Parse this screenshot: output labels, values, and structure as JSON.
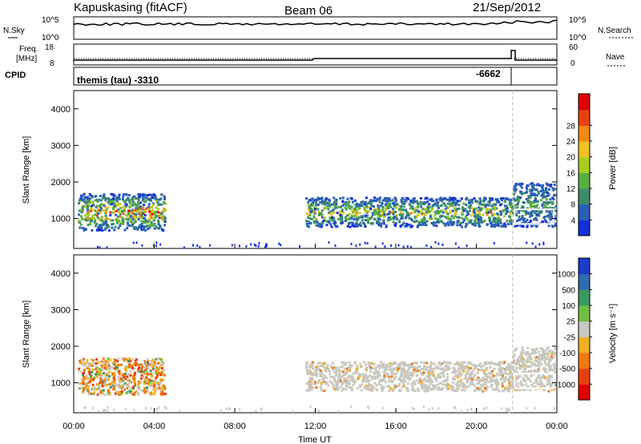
{
  "header": {
    "station": "Kapuskasing (fitACF)",
    "beam": "Beam 06",
    "date": "21/Sep/2012"
  },
  "top_panel": {
    "left_label": "N.Sky",
    "right_label": "N.Search",
    "y_ticks_left": [
      "10^5",
      "10^0"
    ],
    "y_ticks_right": [
      "10^5",
      "10^0"
    ]
  },
  "freq_panel": {
    "left_label_1": "Freq.",
    "left_label_2": "[MHz]",
    "right_label": "Nave",
    "y_ticks_left": [
      "18",
      "8"
    ],
    "y_ticks_right": [
      "60",
      "0"
    ]
  },
  "cpid_panel": {
    "label": "CPID",
    "mode_text": "themis (tau) -3310",
    "alt_mode_text": "-6662"
  },
  "chart_data": [
    {
      "type": "heatmap",
      "title": "",
      "ylabel": "Slant Range [km]",
      "xlabel": "",
      "xlim_hours": [
        0,
        24
      ],
      "ylim_km": [
        180,
        4500
      ],
      "y_ticks": [
        "1000",
        "2000",
        "3000",
        "4000"
      ],
      "colorbar": {
        "label": "Power [dB]",
        "ticks": [
          "4",
          "8",
          "12",
          "16",
          "20",
          "24",
          "28"
        ],
        "colors": [
          "#1530d8",
          "#2a5fb8",
          "#3c8c6a",
          "#55b040",
          "#a8cc20",
          "#f0c020",
          "#f08a10",
          "#e84010",
          "#e00000"
        ]
      },
      "echo_regions": [
        {
          "t_start": 0.2,
          "t_end": 4.5,
          "range_start_km": 700,
          "range_end_km": 1700,
          "peak_db": 28
        },
        {
          "t_start": 11.5,
          "t_end": 21.8,
          "range_start_km": 800,
          "range_end_km": 1600,
          "peak_db": 20
        },
        {
          "t_start": 21.8,
          "t_end": 23.9,
          "range_start_km": 800,
          "range_end_km": 2000,
          "peak_db": 12
        }
      ]
    },
    {
      "type": "heatmap",
      "title": "",
      "ylabel": "Slant Range [km]",
      "xlabel": "Time UT",
      "xlim_hours": [
        0,
        24
      ],
      "ylim_km": [
        180,
        4500
      ],
      "y_ticks": [
        "1000",
        "2000",
        "3000",
        "4000"
      ],
      "x_ticks": [
        "00:00",
        "04:00",
        "08:00",
        "12:00",
        "16:00",
        "20:00",
        "00:00"
      ],
      "colorbar": {
        "label": "Velocity [m s⁻¹]",
        "ticks": [
          "1000",
          "500",
          "100",
          "25",
          "-25",
          "-100",
          "-500",
          "-1000"
        ],
        "colors": [
          "#1a3cc8",
          "#2f6cb0",
          "#3a9a60",
          "#70c040",
          "#c8c8c0",
          "#f0b020",
          "#f07a10",
          "#e84010",
          "#e00000"
        ]
      },
      "echo_regions": [
        {
          "t_start": 0.2,
          "t_end": 4.5,
          "range_start_km": 700,
          "range_end_km": 1700,
          "velocity": -300
        },
        {
          "t_start": 11.5,
          "t_end": 21.8,
          "range_start_km": 800,
          "range_end_km": 1600,
          "velocity": 0
        },
        {
          "t_start": 21.8,
          "t_end": 23.9,
          "range_start_km": 800,
          "range_end_km": 2000,
          "velocity": 0
        }
      ]
    }
  ]
}
